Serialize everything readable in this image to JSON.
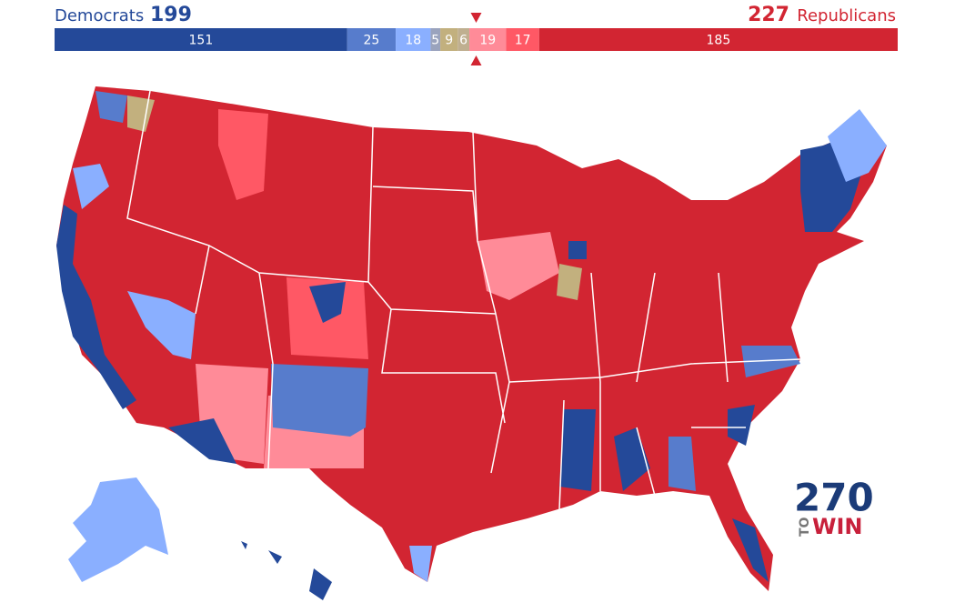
{
  "header": {
    "left_label": "Democrats",
    "left_total": 199,
    "right_total": 227,
    "right_label": "Republicans"
  },
  "bar": {
    "segments": [
      {
        "value": 151,
        "color": "#244999"
      },
      {
        "value": 25,
        "color": "#577ccc"
      },
      {
        "value": 18,
        "color": "#8aafff"
      },
      {
        "value": 5,
        "color": "#9aa3bd"
      },
      {
        "value": 9,
        "color": "#c2b07e"
      },
      {
        "value": 6,
        "color": "#bfaf90"
      },
      {
        "value": 19,
        "color": "#ff8b98"
      },
      {
        "value": 17,
        "color": "#ff5865"
      },
      {
        "value": 185,
        "color": "#d22532"
      }
    ]
  },
  "logo": {
    "number": "270",
    "to": "TO",
    "win": "WIN"
  }
}
